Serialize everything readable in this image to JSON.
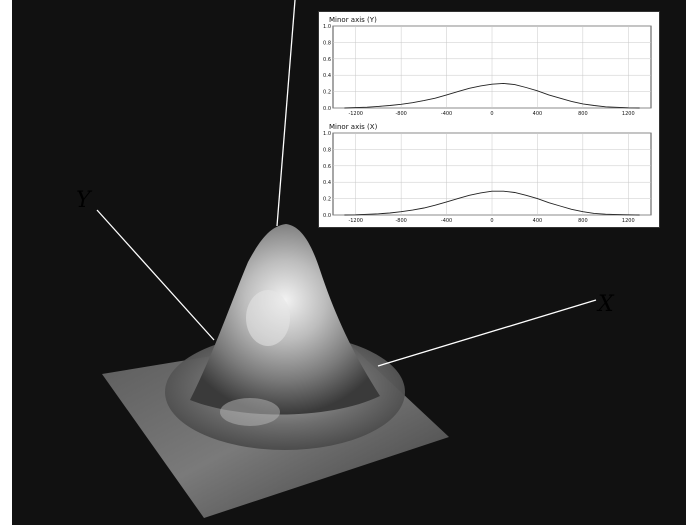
{
  "axis_labels": {
    "y": "Y",
    "x": "X"
  },
  "chart_data": [
    {
      "type": "line",
      "title": "Minor axis (Y)",
      "x": [
        -1300,
        -1200,
        -1100,
        -1000,
        -900,
        -800,
        -700,
        -600,
        -500,
        -400,
        -300,
        -200,
        -100,
        0,
        100,
        200,
        300,
        400,
        500,
        600,
        700,
        800,
        900,
        1000,
        1100,
        1200,
        1300
      ],
      "values": [
        0.0,
        0.005,
        0.01,
        0.02,
        0.03,
        0.045,
        0.065,
        0.09,
        0.12,
        0.16,
        0.2,
        0.24,
        0.27,
        0.29,
        0.3,
        0.285,
        0.25,
        0.21,
        0.16,
        0.12,
        0.08,
        0.05,
        0.03,
        0.015,
        0.008,
        0.003,
        0.0
      ],
      "xticks": [
        "-1200",
        "-800",
        "-400",
        "0",
        "400",
        "800",
        "1200"
      ],
      "yticks": [
        "0.0",
        "0.2",
        "0.4",
        "0.6",
        "0.8",
        "1.0"
      ],
      "xlim": [
        -1400,
        1400
      ],
      "ylim": [
        0,
        1.0
      ],
      "grid": true
    },
    {
      "type": "line",
      "title": "Minor axis (X)",
      "x": [
        -1300,
        -1200,
        -1100,
        -1000,
        -900,
        -800,
        -700,
        -600,
        -500,
        -400,
        -300,
        -200,
        -100,
        0,
        100,
        200,
        300,
        400,
        500,
        600,
        700,
        800,
        900,
        1000,
        1100,
        1200,
        1300
      ],
      "values": [
        0.0,
        0.003,
        0.008,
        0.015,
        0.025,
        0.04,
        0.06,
        0.085,
        0.12,
        0.16,
        0.2,
        0.24,
        0.27,
        0.29,
        0.29,
        0.275,
        0.24,
        0.2,
        0.15,
        0.11,
        0.07,
        0.04,
        0.02,
        0.01,
        0.005,
        0.002,
        0.0
      ],
      "xticks": [
        "-1200",
        "-800",
        "-400",
        "0",
        "400",
        "800",
        "1200"
      ],
      "yticks": [
        "0.0",
        "0.2",
        "0.4",
        "0.6",
        "0.8",
        "1.0"
      ],
      "xlim": [
        -1400,
        1400
      ],
      "ylim": [
        0,
        1.0
      ],
      "grid": true
    }
  ]
}
